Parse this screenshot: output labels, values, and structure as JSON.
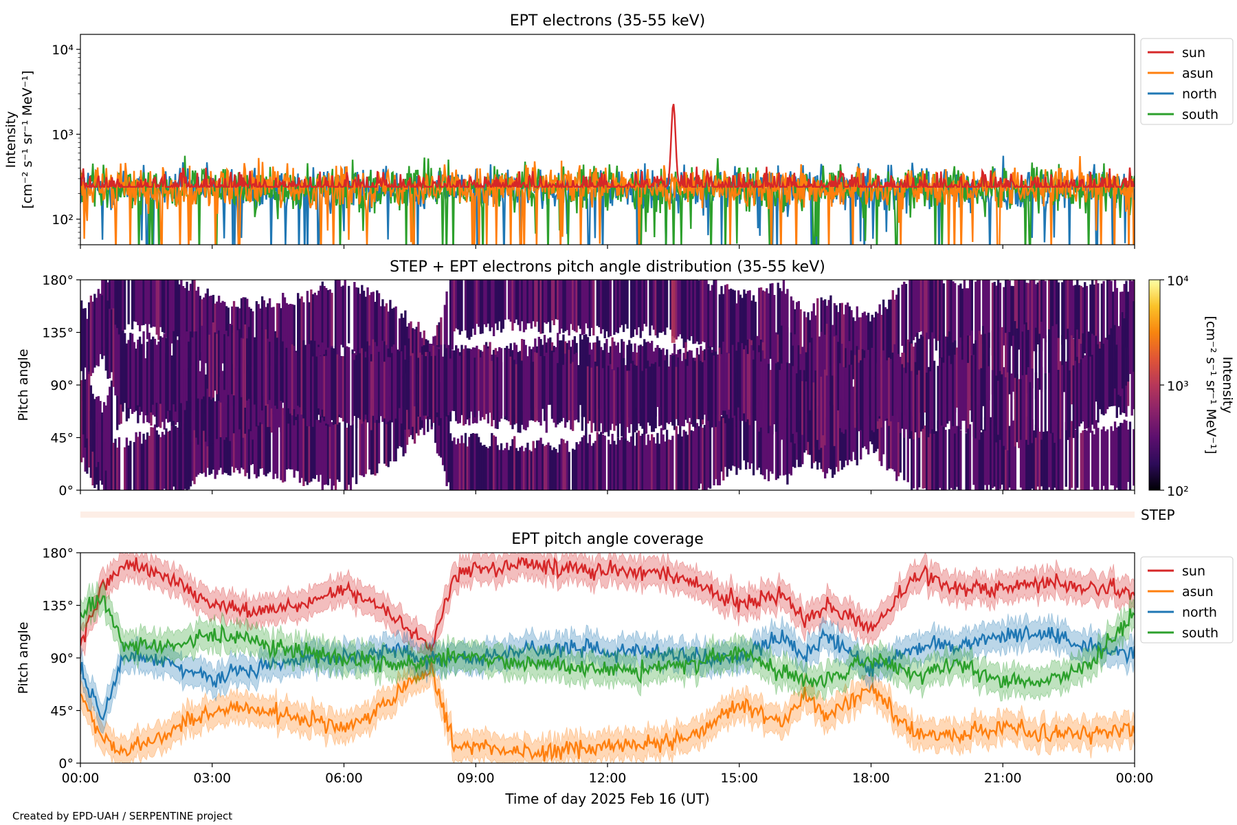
{
  "footer": {
    "credit": "Created by EPD-UAH / SERPENTINE project"
  },
  "colors": {
    "sun": "#d62728",
    "asun": "#ff7f0e",
    "north": "#1f77b4",
    "south": "#2ca02c",
    "colormap": [
      "#000004",
      "#2d0b59",
      "#5c0f6e",
      "#8a226a",
      "#b73759",
      "#e05536",
      "#f8850f",
      "#fbc229",
      "#fcffa4"
    ]
  },
  "chart_data": [
    {
      "id": "intensity",
      "type": "line",
      "title": "EPT electrons (35-55 keV)",
      "ylabel_line1": "Intensity",
      "ylabel_line2": "[cm⁻² s⁻¹ sr⁻¹ MeV⁻¹]",
      "yscale": "log",
      "ylim": [
        50,
        15000
      ],
      "yticks": [
        {
          "value": 100,
          "label": "10²"
        },
        {
          "value": 1000,
          "label": "10³"
        },
        {
          "value": 10000,
          "label": "10⁴"
        }
      ],
      "xlim_hours": [
        0,
        24
      ],
      "legend": {
        "placement": "outside right",
        "entries": [
          "sun",
          "asun",
          "north",
          "south"
        ]
      },
      "series": [
        {
          "name": "north",
          "baseline": 230,
          "spread": 0.55
        },
        {
          "name": "south",
          "baseline": 230,
          "spread": 0.55
        },
        {
          "name": "asun",
          "baseline": 240,
          "spread": 0.5
        },
        {
          "name": "sun",
          "baseline": 240,
          "spread": 0.35,
          "peak": {
            "x_hours": 13.5,
            "value": 2300
          }
        }
      ]
    },
    {
      "id": "pad",
      "type": "heatmap",
      "title": "STEP + EPT electrons pitch angle distribution (35-55 keV)",
      "ylabel": "Pitch angle",
      "ylim": [
        0,
        180
      ],
      "yticks": [
        {
          "value": 0,
          "label": "0°"
        },
        {
          "value": 45,
          "label": "45°"
        },
        {
          "value": 90,
          "label": "90°"
        },
        {
          "value": 135,
          "label": "135°"
        },
        {
          "value": 180,
          "label": "180°"
        }
      ],
      "xlim_hours": [
        0,
        24
      ],
      "colorbar": {
        "scale": "log",
        "range": [
          100,
          10000
        ],
        "ticks": [
          {
            "value": 100,
            "label": "10²"
          },
          {
            "value": 1000,
            "label": "10³"
          },
          {
            "value": 10000,
            "label": "10⁴"
          }
        ],
        "label_line1": "Intensity",
        "label_line2": "[cm⁻² s⁻¹ sr⁻¹ MeV⁻¹]"
      }
    },
    {
      "id": "step",
      "type": "heatmap",
      "label": "STEP"
    },
    {
      "id": "coverage",
      "type": "area",
      "title": "EPT pitch angle coverage",
      "ylabel": "Pitch angle",
      "xlabel": "Time of day 2025 Feb 16 (UT)",
      "ylim": [
        0,
        180
      ],
      "yticks": [
        {
          "value": 0,
          "label": "0°"
        },
        {
          "value": 45,
          "label": "45°"
        },
        {
          "value": 90,
          "label": "90°"
        },
        {
          "value": 135,
          "label": "135°"
        },
        {
          "value": 180,
          "label": "180°"
        }
      ],
      "xlim_hours": [
        0,
        24
      ],
      "xticks": [
        {
          "value": 0,
          "label": "00:00"
        },
        {
          "value": 3,
          "label": "03:00"
        },
        {
          "value": 6,
          "label": "06:00"
        },
        {
          "value": 9,
          "label": "09:00"
        },
        {
          "value": 12,
          "label": "12:00"
        },
        {
          "value": 15,
          "label": "15:00"
        },
        {
          "value": 18,
          "label": "18:00"
        },
        {
          "value": 21,
          "label": "21:00"
        },
        {
          "value": 24,
          "label": "00:00"
        }
      ],
      "legend": {
        "placement": "outside right",
        "entries": [
          "sun",
          "asun",
          "north",
          "south"
        ]
      },
      "band_halfwidth_deg": 12,
      "series": [
        {
          "name": "sun",
          "x_hours": [
            0,
            0.5,
            1,
            2,
            3,
            4,
            5,
            6,
            7,
            7.5,
            8,
            8.5,
            9,
            10,
            11,
            12,
            13,
            14,
            15,
            16,
            16.5,
            17,
            18,
            19,
            20,
            21,
            22,
            23,
            24
          ],
          "values": [
            100,
            150,
            170,
            160,
            135,
            130,
            135,
            150,
            130,
            115,
            100,
            160,
            165,
            170,
            168,
            165,
            165,
            155,
            135,
            145,
            120,
            135,
            115,
            160,
            150,
            150,
            155,
            150,
            145
          ]
        },
        {
          "name": "asun",
          "x_hours": [
            0,
            0.5,
            1,
            2,
            3,
            4,
            5,
            6,
            7,
            7.5,
            8,
            8.5,
            9,
            10,
            11,
            12,
            13,
            14,
            15,
            16,
            16.5,
            17,
            18,
            19,
            20,
            21,
            22,
            23,
            24
          ],
          "values": [
            60,
            20,
            10,
            25,
            45,
            45,
            40,
            30,
            50,
            70,
            80,
            15,
            15,
            10,
            10,
            15,
            15,
            25,
            50,
            35,
            60,
            40,
            65,
            25,
            25,
            30,
            25,
            25,
            30
          ]
        },
        {
          "name": "north",
          "x_hours": [
            0,
            0.5,
            1,
            2,
            3,
            4,
            5,
            6,
            7,
            7.5,
            8,
            8.5,
            9,
            10,
            11,
            12,
            13,
            14,
            15,
            16,
            16.5,
            17,
            18,
            19,
            20,
            21,
            22,
            23,
            24
          ],
          "values": [
            80,
            40,
            95,
            85,
            70,
            80,
            90,
            90,
            95,
            95,
            90,
            90,
            90,
            95,
            100,
            95,
            95,
            90,
            90,
            110,
            90,
            110,
            80,
            100,
            100,
            110,
            110,
            100,
            95
          ]
        },
        {
          "name": "south",
          "x_hours": [
            0,
            0.5,
            1,
            2,
            3,
            4,
            5,
            6,
            7,
            7.5,
            8,
            8.5,
            9,
            10,
            11,
            12,
            13,
            14,
            15,
            16,
            16.5,
            17,
            18,
            19,
            20,
            21,
            22,
            23,
            24
          ],
          "values": [
            130,
            140,
            100,
            100,
            110,
            105,
            95,
            90,
            85,
            85,
            90,
            90,
            90,
            85,
            85,
            80,
            80,
            85,
            95,
            75,
            70,
            70,
            90,
            75,
            85,
            70,
            70,
            85,
            130
          ]
        }
      ]
    }
  ]
}
